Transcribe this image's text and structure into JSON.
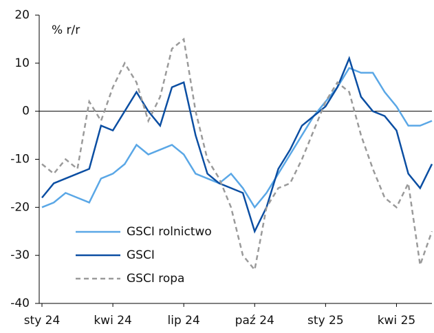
{
  "chart_data": {
    "type": "line",
    "y_label": "% r/r",
    "categories": [
      "sty 24",
      null,
      null,
      null,
      null,
      null,
      "kwi 24",
      null,
      null,
      null,
      null,
      null,
      "lip 24",
      null,
      null,
      null,
      null,
      null,
      "paź 24",
      null,
      null,
      null,
      null,
      null,
      "sty 25",
      null,
      null,
      null,
      null,
      null,
      "kwi 25",
      null,
      null,
      null
    ],
    "ylim": [
      -40,
      20
    ],
    "yticks": [
      -40,
      -30,
      -20,
      -10,
      0,
      10,
      20
    ],
    "legend": "lower-left",
    "series": [
      {
        "name": "GSCI rolnictwo",
        "color": "#5aa7e6",
        "dash": false,
        "values": [
          -20,
          -19,
          -17,
          -18,
          -19,
          -14,
          -13,
          -11,
          -7,
          -9,
          -8,
          -7,
          -9,
          -13,
          -14,
          -15,
          -13,
          -16,
          -20,
          -17,
          -13,
          -9,
          -5,
          -1,
          2,
          5,
          9,
          8,
          8,
          4,
          1,
          -3,
          -3,
          -2
        ]
      },
      {
        "name": "GSCI",
        "color": "#0b4ea2",
        "dash": false,
        "values": [
          -18,
          -15,
          -14,
          -13,
          -12,
          -3,
          -4,
          0,
          4,
          0,
          -3,
          5,
          6,
          -5,
          -13,
          -15,
          -16,
          -17,
          -25,
          -20,
          -12,
          -8,
          -3,
          -1,
          1,
          5,
          11,
          3,
          0,
          -1,
          -4,
          -13,
          -16,
          -11
        ]
      },
      {
        "name": "GSCI ropa",
        "color": "#9a9a9a",
        "dash": true,
        "values": [
          -11,
          -13,
          -10,
          -12,
          2,
          -2,
          5,
          10,
          6,
          -2,
          3,
          13,
          15,
          0,
          -10,
          -14,
          -20,
          -30,
          -33,
          -20,
          -16,
          -15,
          -10,
          -4,
          2,
          6,
          4,
          -5,
          -12,
          -18,
          -20,
          -15,
          -32,
          -25
        ]
      }
    ]
  }
}
